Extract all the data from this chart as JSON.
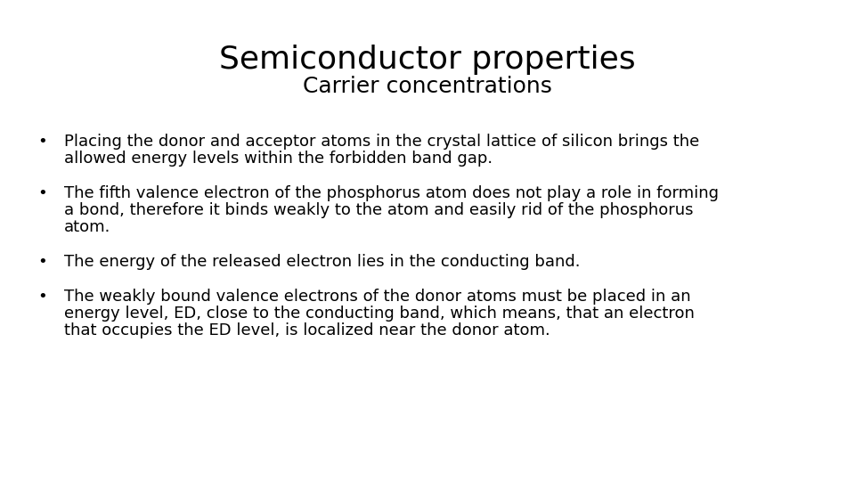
{
  "title": "Semiconductor properties",
  "subtitle": "Carrier concentrations",
  "background_color": "#ffffff",
  "title_fontsize": 26,
  "subtitle_fontsize": 18,
  "bullet_fontsize": 13,
  "title_color": "#000000",
  "subtitle_color": "#000000",
  "bullet_color": "#000000",
  "title_font": "DejaVu Sans",
  "subtitle_font": "DejaVu Sans",
  "bullet_font": "DejaVu Sans",
  "bullet_char": "•",
  "bullets": [
    [
      "Placing the donor and acceptor atoms in the crystal lattice of silicon brings the",
      "allowed energy levels within the forbidden band gap."
    ],
    [
      "The fifth valence electron of the phosphorus atom does not play a role in forming",
      "a bond, therefore it binds weakly to the atom and easily rid of the phosphorus",
      "atom."
    ],
    [
      "The energy of the released electron lies in the conducting band."
    ],
    [
      "The weakly bound valence electrons of the donor atoms must be placed in an",
      "energy level, ED, close to the conducting band, which means, that an electron",
      "that occupies the ED level, is localized near the donor atom."
    ]
  ],
  "fig_width": 9.6,
  "fig_height": 5.4,
  "dpi": 100
}
